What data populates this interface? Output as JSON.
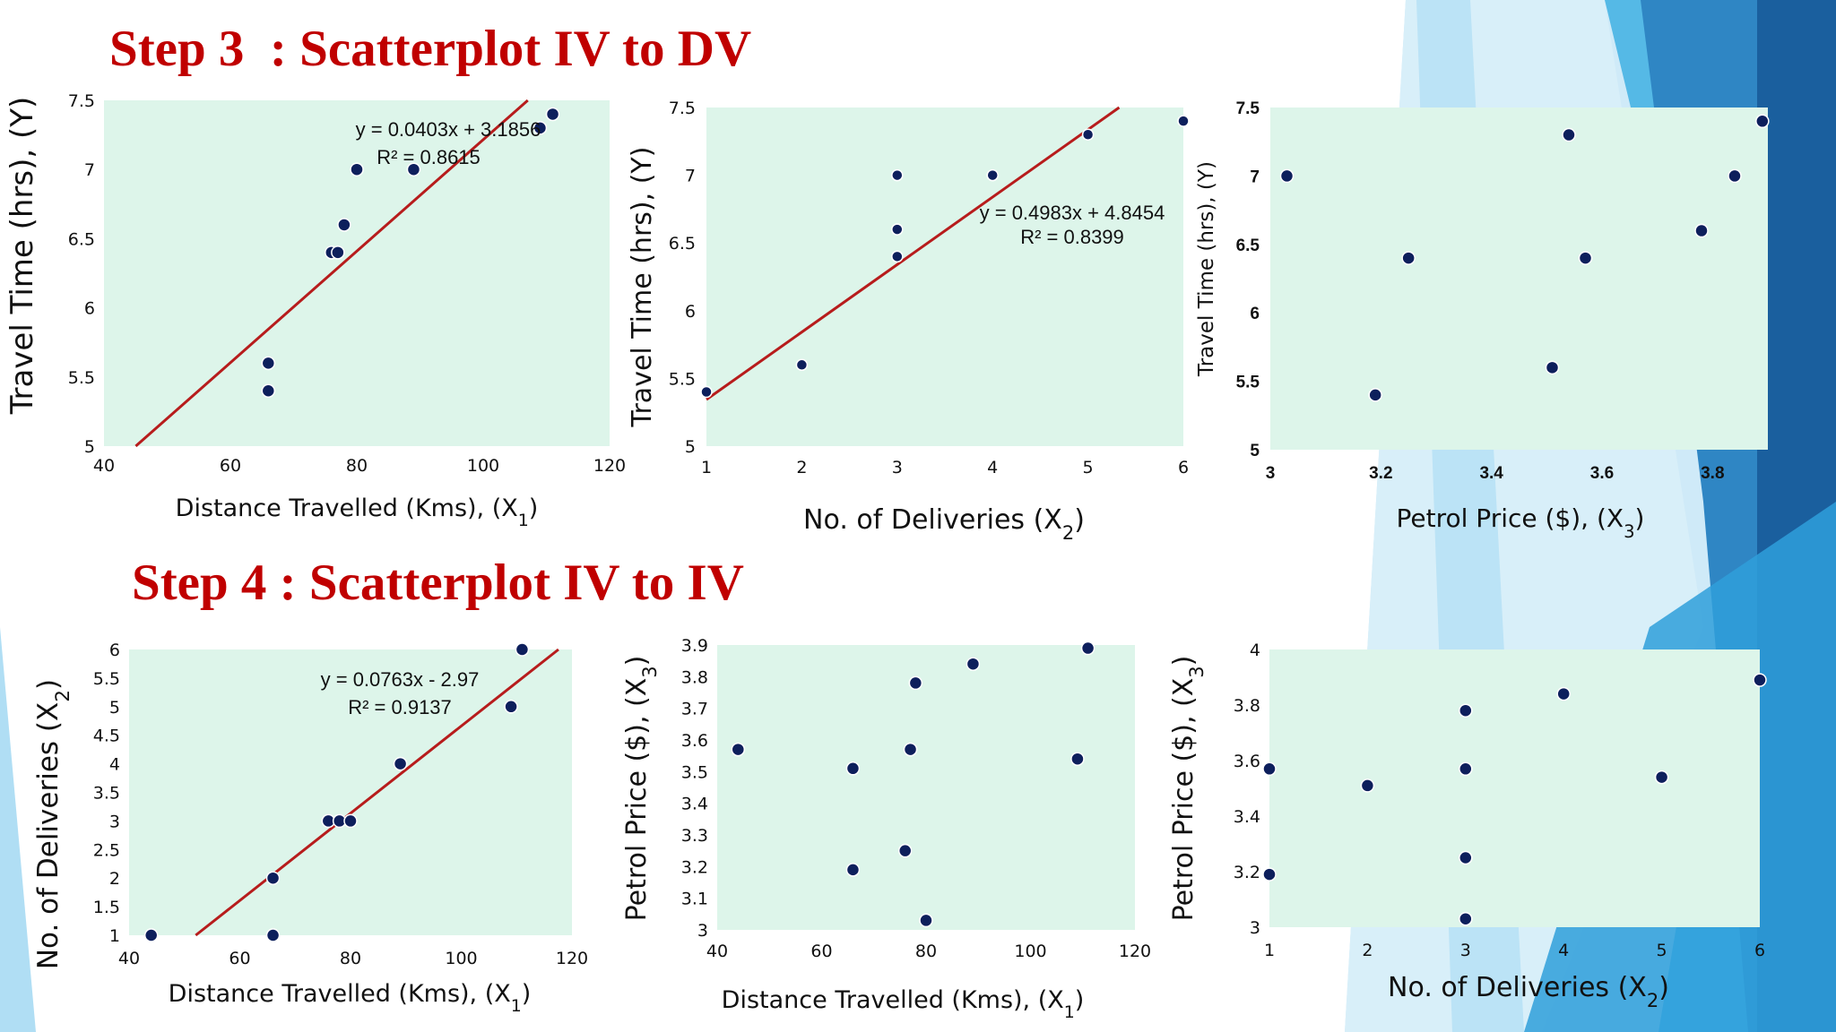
{
  "step3": {
    "title": "Step 3  : Scatterplot IV to DV"
  },
  "step4": {
    "title": "Step 4 : Scatterplot IV to IV"
  },
  "colors": {
    "title": "#c00000",
    "plot_bg": "#ddf5ea",
    "point": "#0d1f5c",
    "trendline": "#b71c1c",
    "accent_blue": "#1e6fb0"
  },
  "chart_data": [
    {
      "type": "scatter",
      "xlabel": "Distance Travelled (Kms),  (X1)",
      "ylabel": "Travel Time (hrs),  (Y)",
      "xlim": [
        40,
        120
      ],
      "ylim": [
        5,
        7.5
      ],
      "xticks": [
        "40",
        "60",
        "80",
        "100",
        "120"
      ],
      "yticks": [
        "5",
        "5.5",
        "6",
        "6.5",
        "7",
        "7.5"
      ],
      "x": [
        66,
        66,
        76,
        77,
        78,
        80,
        89,
        109,
        111
      ],
      "y": [
        5.4,
        5.6,
        6.4,
        6.4,
        6.6,
        7.0,
        7.0,
        7.3,
        7.4
      ],
      "trendline": {
        "slope": 0.0403,
        "intercept": 3.1856
      },
      "equation": "y = 0.0403x + 3.1856",
      "r2": "R² = 0.8615"
    },
    {
      "type": "scatter",
      "xlabel": "No. of Deliveries (X2)",
      "ylabel": "Travel Time (hrs),  (Y)",
      "xlim": [
        1,
        6
      ],
      "ylim": [
        5,
        7.5
      ],
      "xticks": [
        "1",
        "2",
        "3",
        "4",
        "5",
        "6"
      ],
      "yticks": [
        "5",
        "5.5",
        "6",
        "6.5",
        "7",
        "7.5"
      ],
      "x": [
        1,
        2,
        3,
        3,
        3,
        4,
        5,
        6
      ],
      "y": [
        5.4,
        5.6,
        6.4,
        6.6,
        7.0,
        7.0,
        7.3,
        7.4
      ],
      "trendline": {
        "slope": 0.4983,
        "intercept": 4.8454
      },
      "equation": "y = 0.4983x + 4.8454",
      "r2": "R² = 0.8399"
    },
    {
      "type": "scatter",
      "xlabel": "Petrol Price ($), (X3)",
      "ylabel": "Travel Time (hrs),  (Y)",
      "xlim": [
        3,
        3.9
      ],
      "ylim": [
        5,
        7.5
      ],
      "xticks": [
        "3",
        "3.2",
        "3.4",
        "3.6",
        "3.8"
      ],
      "yticks": [
        "5",
        "5.5",
        "6",
        "6.5",
        "7",
        "7.5"
      ],
      "x": [
        3.03,
        3.19,
        3.25,
        3.51,
        3.54,
        3.57,
        3.78,
        3.84,
        3.89
      ],
      "y": [
        7.0,
        5.4,
        6.4,
        5.6,
        7.3,
        6.4,
        6.6,
        7.0,
        7.4
      ]
    },
    {
      "type": "scatter",
      "xlabel": "Distance Travelled (Kms),  (X1)",
      "ylabel": "No. of Deliveries (X2)",
      "xlim": [
        40,
        120
      ],
      "ylim": [
        1,
        6
      ],
      "xticks": [
        "40",
        "60",
        "80",
        "100",
        "120"
      ],
      "yticks": [
        "1",
        "1.5",
        "2",
        "2.5",
        "3",
        "3.5",
        "4",
        "4.5",
        "5",
        "5.5",
        "6"
      ],
      "x": [
        44,
        66,
        66,
        76,
        78,
        80,
        89,
        109,
        111
      ],
      "y": [
        1,
        1,
        2,
        3,
        3,
        3,
        4,
        5,
        6
      ],
      "trendline": {
        "slope": 0.0763,
        "intercept": -2.97
      },
      "equation": "y = 0.0763x - 2.97",
      "r2": "R² = 0.9137"
    },
    {
      "type": "scatter",
      "xlabel": "Distance Travelled (Kms),  (X1)",
      "ylabel": "Petrol Price ($), (X3)",
      "xlim": [
        40,
        120
      ],
      "ylim": [
        3,
        3.9
      ],
      "xticks": [
        "40",
        "60",
        "80",
        "100",
        "120"
      ],
      "yticks": [
        "3",
        "3.1",
        "3.2",
        "3.3",
        "3.4",
        "3.5",
        "3.6",
        "3.7",
        "3.8",
        "3.9"
      ],
      "x": [
        44,
        66,
        66,
        76,
        77,
        78,
        80,
        89,
        109,
        111
      ],
      "y": [
        3.57,
        3.51,
        3.19,
        3.25,
        3.57,
        3.78,
        3.03,
        3.84,
        3.54,
        3.89
      ]
    },
    {
      "type": "scatter",
      "xlabel": "No. of Deliveries (X2)",
      "ylabel": "Petrol Price ($), (X3)",
      "xlim": [
        1,
        6
      ],
      "ylim": [
        3,
        4
      ],
      "xticks": [
        "1",
        "2",
        "3",
        "4",
        "5",
        "6"
      ],
      "yticks": [
        "3",
        "3.2",
        "3.4",
        "3.6",
        "3.8",
        "4"
      ],
      "x": [
        1,
        1,
        2,
        3,
        3,
        3,
        3,
        4,
        5,
        6
      ],
      "y": [
        3.57,
        3.19,
        3.51,
        3.03,
        3.25,
        3.57,
        3.78,
        3.84,
        3.54,
        3.89
      ]
    }
  ]
}
